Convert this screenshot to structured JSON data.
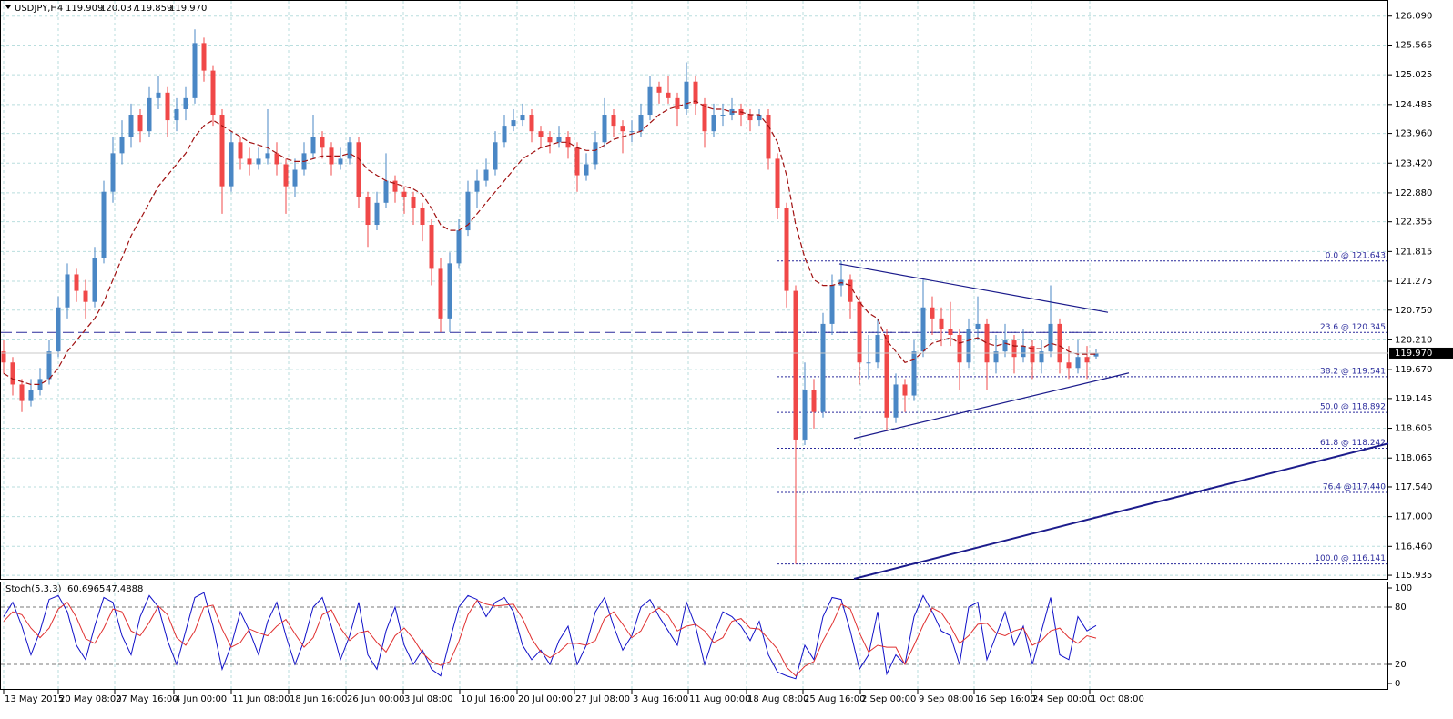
{
  "chart_data": {
    "type": "candlestick",
    "title": "USDJPY,H4",
    "up_color": "#4a87c5",
    "down_color": "#f04848",
    "ma_color": "#a01010",
    "grid": true,
    "xlim": [
      0,
      152.1
    ],
    "xticks": [
      {
        "value": 0,
        "label": "13 May 2015"
      },
      {
        "value": 6.0,
        "label": "20 May 08:00"
      },
      {
        "value": 12.2,
        "label": "27 May 16:00"
      },
      {
        "value": 18.7,
        "label": "4 Jun 00:00"
      },
      {
        "value": 25.0,
        "label": "11 Jun 08:00"
      },
      {
        "value": 31.3,
        "label": "18 Jun 16:00"
      },
      {
        "value": 37.6,
        "label": "26 Jun 00:00"
      },
      {
        "value": 43.9,
        "label": "3 Jul 08:00"
      },
      {
        "value": 50.1,
        "label": "10 Jul 16:00"
      },
      {
        "value": 56.4,
        "label": "20 Jul 00:00"
      },
      {
        "value": 62.7,
        "label": "27 Jul 08:00"
      },
      {
        "value": 69.0,
        "label": "3 Aug 16:00"
      },
      {
        "value": 75.2,
        "label": "11 Aug 00:00"
      },
      {
        "value": 81.6,
        "label": "18 Aug 08:00"
      },
      {
        "value": 87.8,
        "label": "25 Aug 16:00"
      },
      {
        "value": 94.1,
        "label": "2 Sep 00:00"
      },
      {
        "value": 100.4,
        "label": "9 Sep 08:00"
      },
      {
        "value": 106.6,
        "label": "16 Sep 16:00"
      },
      {
        "value": 112.9,
        "label": "24 Sep 00:00"
      },
      {
        "value": 119.3,
        "label": "1 Oct 08:00"
      }
    ],
    "ylim": [
      115.87,
      126.35
    ],
    "yticks": [
      {
        "value": 126.09,
        "label": "126.090"
      },
      {
        "value": 125.565,
        "label": "125.565"
      },
      {
        "value": 125.025,
        "label": "125.025"
      },
      {
        "value": 124.485,
        "label": "124.485"
      },
      {
        "value": 123.96,
        "label": "123.960"
      },
      {
        "value": 123.42,
        "label": "123.420"
      },
      {
        "value": 122.88,
        "label": "122.880"
      },
      {
        "value": 122.355,
        "label": "122.355"
      },
      {
        "value": 121.815,
        "label": "121.815"
      },
      {
        "value": 121.275,
        "label": "121.275"
      },
      {
        "value": 120.75,
        "label": "120.750"
      },
      {
        "value": 120.21,
        "label": "120.210"
      },
      {
        "value": 119.67,
        "label": "119.670"
      },
      {
        "value": 119.145,
        "label": "119.145"
      },
      {
        "value": 118.605,
        "label": "118.605"
      },
      {
        "value": 118.065,
        "label": "118.065"
      },
      {
        "value": 117.54,
        "label": "117.540"
      },
      {
        "value": 117,
        "label": "117.000"
      },
      {
        "value": 116.46,
        "label": "116.460"
      },
      {
        "value": 115.935,
        "label": "115.935"
      }
    ],
    "last_price_label": "119.970",
    "support_line": 120.345,
    "fib_color": "#2a2a9c",
    "fib_levels": [
      {
        "value": 121.643,
        "label": "0.0 @ 121.643"
      },
      {
        "value": 120.345,
        "label": "23.6 @ 120.345"
      },
      {
        "value": 119.541,
        "label": "38.2 @ 119.541"
      },
      {
        "value": 118.892,
        "label": "50.0 @ 118.892"
      },
      {
        "value": 118.242,
        "label": "61.8 @ 118.242"
      },
      {
        "value": 117.44,
        "label": "76.4 @117.440"
      },
      {
        "value": 116.141,
        "label": "100.0 @ 116.141"
      }
    ],
    "trendlines": [
      {
        "x": [
          91.8,
          121.3
        ],
        "y": [
          121.59,
          120.71
        ]
      },
      {
        "x": [
          93.4,
          123.6
        ],
        "y": [
          118.42,
          119.61
        ]
      },
      {
        "x": [
          93.4,
          152.1
        ],
        "y": [
          115.87,
          118.33
        ]
      }
    ],
    "candles": [
      [
        120.0,
        120.2,
        119.6,
        119.8
      ],
      [
        119.8,
        119.9,
        119.2,
        119.4
      ],
      [
        119.4,
        119.5,
        118.9,
        119.1
      ],
      [
        119.1,
        119.5,
        119.0,
        119.3
      ],
      [
        119.3,
        119.7,
        119.2,
        119.5
      ],
      [
        119.5,
        120.2,
        119.4,
        120.0
      ],
      [
        120.0,
        121.0,
        119.9,
        120.8
      ],
      [
        120.8,
        121.6,
        120.6,
        121.4
      ],
      [
        121.4,
        121.5,
        120.9,
        121.1
      ],
      [
        121.1,
        121.3,
        120.6,
        120.9
      ],
      [
        120.9,
        121.9,
        120.8,
        121.7
      ],
      [
        121.7,
        123.1,
        121.6,
        122.9
      ],
      [
        122.9,
        123.9,
        122.7,
        123.6
      ],
      [
        123.6,
        124.2,
        123.4,
        123.9
      ],
      [
        123.9,
        124.5,
        123.7,
        124.3
      ],
      [
        124.3,
        124.4,
        123.8,
        124.0
      ],
      [
        124.0,
        124.8,
        123.9,
        124.6
      ],
      [
        124.6,
        125.0,
        124.4,
        124.7
      ],
      [
        124.7,
        124.8,
        123.9,
        124.2
      ],
      [
        124.2,
        124.6,
        124.0,
        124.4
      ],
      [
        124.4,
        124.8,
        124.2,
        124.6
      ],
      [
        124.6,
        125.85,
        124.5,
        125.6
      ],
      [
        125.6,
        125.7,
        124.9,
        125.1
      ],
      [
        125.1,
        125.2,
        124.1,
        124.3
      ],
      [
        124.3,
        124.4,
        122.5,
        123.0
      ],
      [
        123.0,
        124.0,
        122.9,
        123.8
      ],
      [
        123.8,
        123.9,
        123.3,
        123.5
      ],
      [
        123.5,
        123.7,
        123.2,
        123.4
      ],
      [
        123.4,
        123.7,
        123.3,
        123.5
      ],
      [
        123.5,
        124.4,
        123.4,
        123.6
      ],
      [
        123.6,
        123.8,
        123.2,
        123.4
      ],
      [
        123.4,
        123.5,
        122.5,
        123.0
      ],
      [
        123.0,
        123.5,
        122.8,
        123.3
      ],
      [
        123.3,
        123.8,
        123.2,
        123.6
      ],
      [
        123.6,
        124.3,
        123.5,
        123.9
      ],
      [
        123.9,
        124.0,
        123.5,
        123.7
      ],
      [
        123.7,
        123.8,
        123.2,
        123.4
      ],
      [
        123.4,
        123.7,
        123.3,
        123.5
      ],
      [
        123.5,
        123.9,
        123.4,
        123.8
      ],
      [
        123.8,
        123.9,
        122.6,
        122.8
      ],
      [
        122.8,
        122.9,
        121.9,
        122.3
      ],
      [
        122.3,
        122.9,
        122.2,
        122.7
      ],
      [
        122.7,
        123.6,
        122.6,
        123.1
      ],
      [
        123.1,
        123.2,
        122.7,
        122.9
      ],
      [
        122.9,
        123.0,
        122.5,
        122.8
      ],
      [
        122.8,
        122.9,
        122.3,
        122.6
      ],
      [
        122.6,
        122.7,
        122.0,
        122.3
      ],
      [
        122.3,
        122.4,
        121.2,
        121.5
      ],
      [
        121.5,
        121.7,
        120.35,
        120.6
      ],
      [
        120.6,
        121.8,
        120.35,
        121.6
      ],
      [
        121.6,
        122.4,
        121.5,
        122.2
      ],
      [
        122.2,
        123.1,
        122.1,
        122.9
      ],
      [
        122.9,
        123.3,
        122.6,
        123.1
      ],
      [
        123.1,
        123.5,
        123.0,
        123.3
      ],
      [
        123.3,
        124.0,
        123.2,
        123.8
      ],
      [
        123.8,
        124.3,
        123.7,
        124.1
      ],
      [
        124.1,
        124.4,
        124.0,
        124.2
      ],
      [
        124.2,
        124.5,
        124.1,
        124.3
      ],
      [
        124.3,
        124.4,
        123.8,
        124.0
      ],
      [
        124.0,
        124.1,
        123.7,
        123.9
      ],
      [
        123.9,
        124.0,
        123.6,
        123.8
      ],
      [
        123.8,
        124.1,
        123.7,
        123.9
      ],
      [
        123.9,
        124.0,
        123.5,
        123.7
      ],
      [
        123.7,
        123.8,
        122.9,
        123.2
      ],
      [
        123.2,
        123.6,
        123.1,
        123.4
      ],
      [
        123.4,
        124.0,
        123.3,
        123.8
      ],
      [
        123.8,
        124.6,
        123.7,
        124.3
      ],
      [
        124.3,
        124.4,
        123.9,
        124.1
      ],
      [
        124.1,
        124.2,
        123.6,
        124.0
      ],
      [
        124.0,
        124.2,
        123.8,
        124.0
      ],
      [
        124.0,
        124.5,
        123.9,
        124.3
      ],
      [
        124.3,
        125.0,
        124.2,
        124.8
      ],
      [
        124.8,
        124.9,
        124.5,
        124.7
      ],
      [
        124.7,
        125.0,
        124.5,
        124.6
      ],
      [
        124.6,
        124.7,
        124.1,
        124.4
      ],
      [
        124.4,
        125.25,
        124.3,
        124.9
      ],
      [
        124.9,
        125.0,
        124.3,
        124.5
      ],
      [
        124.5,
        124.6,
        123.7,
        124.0
      ],
      [
        124.0,
        124.5,
        123.9,
        124.3
      ],
      [
        124.3,
        124.5,
        124.1,
        124.3
      ],
      [
        124.3,
        124.6,
        124.2,
        124.4
      ],
      [
        124.4,
        124.5,
        124.1,
        124.3
      ],
      [
        124.3,
        124.4,
        124.0,
        124.2
      ],
      [
        124.2,
        124.4,
        124.1,
        124.3
      ],
      [
        124.3,
        124.4,
        123.3,
        123.5
      ],
      [
        123.5,
        123.6,
        122.4,
        122.6
      ],
      [
        122.6,
        122.7,
        120.8,
        121.1
      ],
      [
        121.1,
        121.2,
        116.141,
        118.4
      ],
      [
        118.4,
        119.8,
        118.3,
        119.3
      ],
      [
        119.3,
        119.5,
        118.6,
        118.9
      ],
      [
        118.9,
        120.7,
        118.8,
        120.5
      ],
      [
        120.5,
        121.4,
        120.3,
        121.2
      ],
      [
        121.2,
        121.643,
        121.0,
        121.3
      ],
      [
        121.3,
        121.4,
        120.6,
        120.9
      ],
      [
        120.9,
        121.0,
        119.4,
        119.8
      ],
      [
        119.8,
        120.3,
        119.5,
        119.8
      ],
      [
        119.8,
        120.6,
        119.7,
        120.3
      ],
      [
        120.3,
        120.4,
        118.55,
        118.8
      ],
      [
        118.8,
        119.6,
        118.7,
        119.4
      ],
      [
        119.4,
        119.5,
        118.9,
        119.2
      ],
      [
        119.2,
        120.2,
        119.1,
        120.0
      ],
      [
        120.0,
        121.3,
        119.9,
        120.8
      ],
      [
        120.8,
        121.0,
        120.3,
        120.6
      ],
      [
        120.6,
        120.8,
        120.1,
        120.4
      ],
      [
        120.4,
        120.9,
        120.1,
        120.3
      ],
      [
        120.3,
        120.4,
        119.3,
        119.8
      ],
      [
        119.8,
        120.6,
        119.7,
        120.4
      ],
      [
        120.4,
        121.0,
        120.2,
        120.5
      ],
      [
        120.5,
        120.6,
        119.3,
        119.8
      ],
      [
        119.8,
        120.3,
        119.6,
        120.0
      ],
      [
        120.0,
        120.5,
        119.9,
        120.2
      ],
      [
        120.2,
        120.3,
        119.6,
        119.9
      ],
      [
        119.9,
        120.4,
        119.8,
        120.1
      ],
      [
        120.1,
        120.2,
        119.5,
        119.8
      ],
      [
        119.8,
        120.2,
        119.6,
        120.0
      ],
      [
        120.0,
        121.2,
        119.9,
        120.5
      ],
      [
        120.5,
        120.6,
        119.6,
        119.8
      ],
      [
        119.8,
        120.1,
        119.5,
        119.7
      ],
      [
        119.7,
        120.2,
        119.6,
        119.9
      ],
      [
        119.9,
        120.1,
        119.5,
        119.8
      ],
      [
        119.909,
        120.037,
        119.859,
        119.97
      ]
    ],
    "ma": [
      119.6,
      119.5,
      119.45,
      119.4,
      119.4,
      119.5,
      119.7,
      120.0,
      120.2,
      120.4,
      120.6,
      120.9,
      121.3,
      121.7,
      122.1,
      122.4,
      122.7,
      123.0,
      123.2,
      123.4,
      123.6,
      123.9,
      124.1,
      124.2,
      124.1,
      124.0,
      123.9,
      123.8,
      123.75,
      123.7,
      123.6,
      123.5,
      123.45,
      123.45,
      123.5,
      123.55,
      123.55,
      123.55,
      123.6,
      123.5,
      123.3,
      123.2,
      123.1,
      123.05,
      123.0,
      122.95,
      122.85,
      122.6,
      122.3,
      122.2,
      122.2,
      122.3,
      122.5,
      122.7,
      122.9,
      123.1,
      123.3,
      123.5,
      123.6,
      123.7,
      123.75,
      123.8,
      123.8,
      123.7,
      123.65,
      123.65,
      123.75,
      123.85,
      123.9,
      123.95,
      124.0,
      124.15,
      124.3,
      124.4,
      124.45,
      124.5,
      124.55,
      124.45,
      124.4,
      124.4,
      124.35,
      124.35,
      124.3,
      124.3,
      124.1,
      123.8,
      123.2,
      122.3,
      121.7,
      121.3,
      121.2,
      121.2,
      121.25,
      121.2,
      120.9,
      120.7,
      120.6,
      120.2,
      120.0,
      119.8,
      119.85,
      120.0,
      120.15,
      120.2,
      120.25,
      120.15,
      120.2,
      120.25,
      120.15,
      120.1,
      120.15,
      120.1,
      120.1,
      120.05,
      120.05,
      120.15,
      120.1,
      120.0,
      119.95,
      119.95,
      119.95
    ],
    "stochastic": {
      "label": "Stoch(5,3,3)",
      "ylim": [
        -5.7,
        105.7
      ],
      "yticks": [
        0,
        20,
        80,
        100
      ],
      "levels": [
        20,
        80
      ],
      "series": [
        {
          "color": "#1010c8",
          "values": [
            70,
            85,
            60,
            30,
            55,
            88,
            92,
            75,
            40,
            25,
            60,
            90,
            85,
            50,
            30,
            70,
            92,
            80,
            45,
            20,
            55,
            90,
            95,
            60,
            15,
            40,
            75,
            55,
            30,
            65,
            85,
            50,
            20,
            45,
            80,
            90,
            60,
            25,
            50,
            85,
            30,
            15,
            55,
            80,
            40,
            20,
            35,
            15,
            8,
            45,
            80,
            92,
            88,
            70,
            85,
            90,
            75,
            40,
            25,
            35,
            20,
            45,
            60,
            20,
            40,
            75,
            90,
            60,
            35,
            50,
            80,
            88,
            70,
            55,
            40,
            85,
            60,
            20,
            50,
            75,
            70,
            60,
            45,
            65,
            30,
            12,
            8,
            5,
            40,
            25,
            70,
            90,
            88,
            55,
            15,
            30,
            75,
            10,
            30,
            20,
            70,
            92,
            75,
            55,
            50,
            20,
            80,
            85,
            25,
            50,
            75,
            40,
            60,
            20,
            55,
            90,
            30,
            25,
            70,
            55,
            60.6965
          ]
        },
        {
          "color": "#e03030",
          "values": [
            65,
            75,
            72,
            58,
            48,
            58,
            78,
            85,
            69,
            47,
            42,
            58,
            78,
            75,
            55,
            50,
            64,
            81,
            72,
            48,
            40,
            55,
            80,
            82,
            57,
            38,
            43,
            57,
            53,
            50,
            60,
            67,
            52,
            38,
            48,
            72,
            77,
            58,
            45,
            53,
            55,
            43,
            33,
            50,
            58,
            47,
            32,
            23,
            19,
            23,
            44,
            72,
            87,
            83,
            81,
            82,
            83,
            68,
            47,
            33,
            27,
            33,
            42,
            42,
            40,
            45,
            68,
            75,
            62,
            48,
            55,
            73,
            79,
            71,
            55,
            60,
            62,
            55,
            43,
            48,
            65,
            68,
            58,
            57,
            47,
            36,
            17,
            8,
            18,
            23,
            45,
            62,
            83,
            78,
            53,
            33,
            40,
            38,
            38,
            20,
            40,
            61,
            79,
            74,
            60,
            42,
            50,
            62,
            63,
            53,
            50,
            55,
            58,
            40,
            45,
            55,
            58,
            48,
            42,
            50,
            47.4888
          ]
        }
      ]
    }
  }
}
